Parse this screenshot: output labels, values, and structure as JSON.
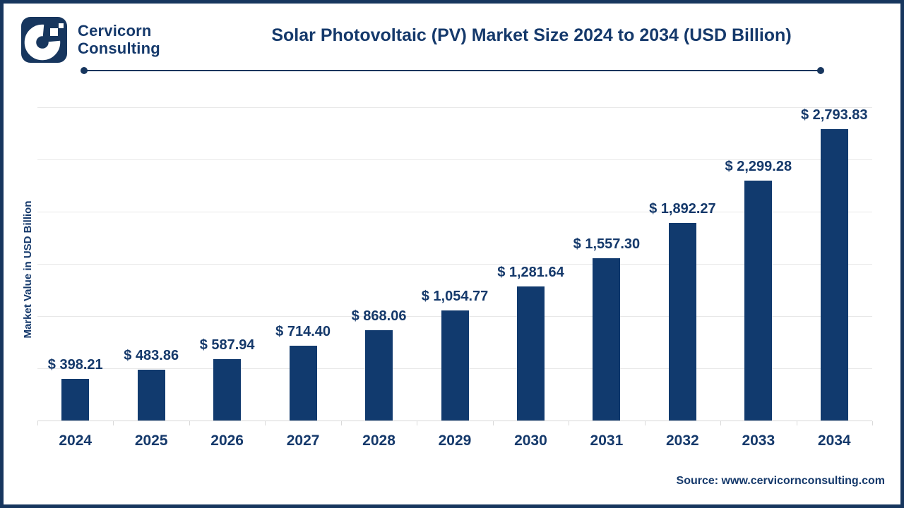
{
  "brand": {
    "name_line1": "Cervicorn",
    "name_line2": "Consulting",
    "logo_icon": "c-pixel-logo"
  },
  "chart_data": {
    "type": "bar",
    "title": "Solar Photovoltaic (PV) Market Size 2024 to 2034 (USD Billion)",
    "xlabel": "",
    "ylabel": "Market Value in USD Billion",
    "categories": [
      "2024",
      "2025",
      "2026",
      "2027",
      "2028",
      "2029",
      "2030",
      "2031",
      "2032",
      "2033",
      "2034"
    ],
    "values": [
      398.21,
      483.86,
      587.94,
      714.4,
      868.06,
      1054.77,
      1281.64,
      1557.3,
      1892.27,
      2299.28,
      2793.83
    ],
    "value_labels": [
      "$ 398.21",
      "$ 483.86",
      "$ 587.94",
      "$ 714.40",
      "$ 868.06",
      "$ 1,054.77",
      "$ 1,281.64",
      "$ 1,557.30",
      "$ 1,892.27",
      "$ 2,299.28",
      "$ 2,793.83"
    ],
    "ylim": [
      0,
      3000
    ],
    "grid_step": 500,
    "grid": "horizontal",
    "legend_position": "none",
    "bar_color": "#113A6E"
  },
  "footer": {
    "source": "Source: www.cervicornconsulting.com"
  },
  "colors": {
    "navy": "#15396B",
    "border": "#17365E",
    "grid": "#E8E8E8",
    "axis": "#D9D9D9",
    "background": "#FFFFFF"
  }
}
